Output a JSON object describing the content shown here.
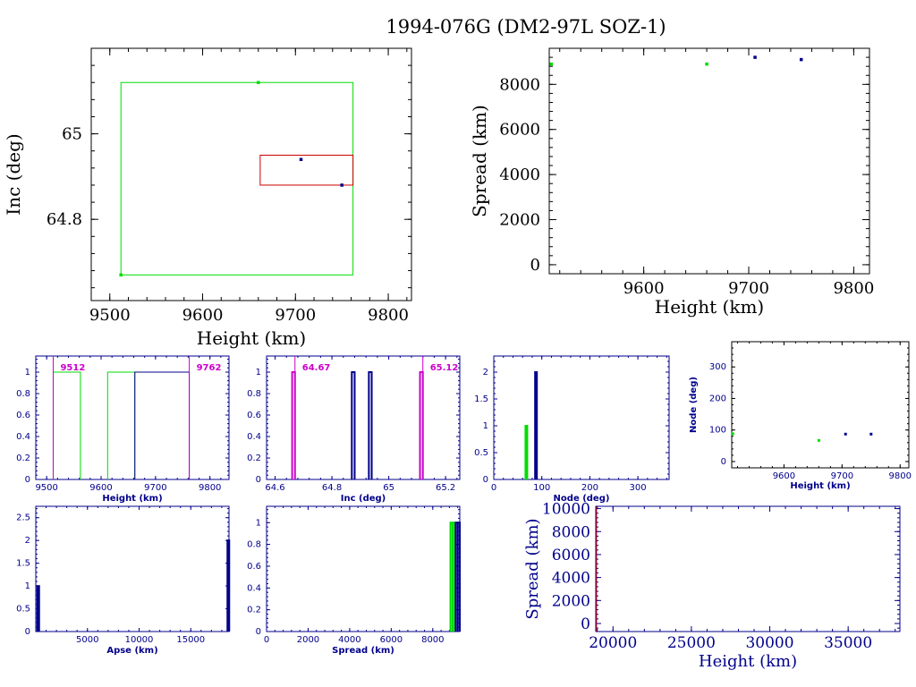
{
  "title": "1994-076G (DM2-97L SOZ-1)",
  "colors": {
    "green": "#00dd00",
    "blue": "#00008b",
    "red": "#cc0000",
    "magenta": "#cc00cc",
    "black": "#000000"
  },
  "chart_data": [
    {
      "id": "inc_height",
      "type": "scatter",
      "xlabel": "Height (km)",
      "ylabel": "Inc (deg)",
      "xlim": [
        9480,
        9825
      ],
      "ylim": [
        64.61,
        65.2
      ],
      "xticks": [
        9500,
        9600,
        9700,
        9800
      ],
      "yticks": [
        64.8,
        65
      ],
      "points": [
        {
          "x": 9512,
          "y": 64.67,
          "color": "green"
        },
        {
          "x": 9660,
          "y": 65.12,
          "color": "green"
        },
        {
          "x": 9706,
          "y": 64.94,
          "color": "blue"
        },
        {
          "x": 9750,
          "y": 64.88,
          "color": "blue"
        }
      ],
      "boxes": [
        {
          "x0": 9512,
          "x1": 9762,
          "y0": 64.67,
          "y1": 65.12,
          "color": "green"
        },
        {
          "x0": 9662,
          "x1": 9762,
          "y0": 64.88,
          "y1": 64.95,
          "color": "red"
        }
      ]
    },
    {
      "id": "spread_height",
      "type": "scatter",
      "xlabel": "Height (km)",
      "ylabel": "Spread (km)",
      "xlim": [
        9510,
        9815
      ],
      "ylim": [
        -400,
        9600
      ],
      "xticks": [
        9600,
        9700,
        9800
      ],
      "yticks": [
        0,
        2000,
        4000,
        6000,
        8000
      ],
      "points": [
        {
          "x": 9512,
          "y": 8900,
          "color": "green"
        },
        {
          "x": 9660,
          "y": 8900,
          "color": "green"
        },
        {
          "x": 9706,
          "y": 9200,
          "color": "blue"
        },
        {
          "x": 9750,
          "y": 9100,
          "color": "blue"
        }
      ]
    },
    {
      "id": "hist_height",
      "type": "bar",
      "xlabel": "Height (km)",
      "xlim": [
        9480,
        9835
      ],
      "ylim": [
        0,
        1.15
      ],
      "xticks": [
        9500,
        9600,
        9700,
        9800
      ],
      "yticks": [
        0,
        0.2,
        0.4,
        0.6,
        0.8,
        1
      ],
      "ytick_labels": [
        "0",
        "0.2",
        "0.4",
        "0.6",
        "0.8",
        "1"
      ],
      "bars": [
        {
          "x0": 9512,
          "x1": 9562,
          "y": 1,
          "color": "green"
        },
        {
          "x0": 9612,
          "x1": 9662,
          "y": 1,
          "color": "green"
        },
        {
          "x0": 9662,
          "x1": 9762,
          "y": 1,
          "color": "blue"
        }
      ],
      "markers": [
        {
          "x": 9512,
          "label": "9512",
          "side": "right"
        },
        {
          "x": 9762,
          "label": "9762",
          "side": "right"
        }
      ]
    },
    {
      "id": "hist_inc",
      "type": "bar",
      "xlabel": "Inc (deg)",
      "xlim": [
        64.57,
        65.25
      ],
      "ylim": [
        0,
        1.15
      ],
      "xticks": [
        64.6,
        64.8,
        65,
        65.2
      ],
      "xtick_labels": [
        "64.6",
        "64.8",
        "65",
        "65.2"
      ],
      "yticks": [
        0,
        0.2,
        0.4,
        0.6,
        0.8,
        1
      ],
      "ytick_labels": [
        "0",
        "0.2",
        "0.4",
        "0.6",
        "0.8",
        "1"
      ],
      "bars": [
        {
          "x0": 64.66,
          "x1": 64.67,
          "y": 1,
          "color": "magenta"
        },
        {
          "x0": 64.87,
          "x1": 64.88,
          "y": 1,
          "color": "blue"
        },
        {
          "x0": 64.93,
          "x1": 64.94,
          "y": 1,
          "color": "blue"
        },
        {
          "x0": 65.11,
          "x1": 65.12,
          "y": 1,
          "color": "magenta"
        }
      ],
      "markers": [
        {
          "x": 64.67,
          "label": "64.67",
          "side": "right"
        },
        {
          "x": 65.12,
          "label": "65.12",
          "side": "right"
        }
      ]
    },
    {
      "id": "hist_node",
      "type": "bar",
      "xlabel": "Node (deg)",
      "xlim": [
        0,
        365
      ],
      "ylim": [
        0,
        2.3
      ],
      "xticks": [
        0,
        100,
        200,
        300
      ],
      "yticks": [
        0,
        0.5,
        1,
        1.5,
        2
      ],
      "ytick_labels": [
        "0",
        "0.5",
        "1",
        "1.5",
        "2"
      ],
      "bars": [
        {
          "x0": 66,
          "x1": 68,
          "y": 1,
          "color": "green"
        },
        {
          "x0": 86,
          "x1": 88,
          "y": 2,
          "color": "blue"
        }
      ]
    },
    {
      "id": "node_height",
      "type": "scatter",
      "xlabel": "Height (km)",
      "ylabel": "Node (deg)",
      "xlim": [
        9510,
        9815
      ],
      "ylim": [
        -20,
        380
      ],
      "xticks": [
        9600,
        9700,
        9800
      ],
      "yticks": [
        0,
        100,
        200,
        300
      ],
      "points": [
        {
          "x": 9512,
          "y": 88,
          "color": "green"
        },
        {
          "x": 9660,
          "y": 67,
          "color": "green"
        },
        {
          "x": 9706,
          "y": 87,
          "color": "blue"
        },
        {
          "x": 9750,
          "y": 87,
          "color": "blue"
        }
      ]
    },
    {
      "id": "hist_apse",
      "type": "bar",
      "xlabel": "Apse (km)",
      "xlim": [
        0,
        18700
      ],
      "ylim": [
        0,
        2.75
      ],
      "xticks": [
        5000,
        10000,
        15000
      ],
      "yticks": [
        0,
        0.5,
        1,
        1.5,
        2,
        2.5
      ],
      "ytick_labels": [
        "0",
        "0.5",
        "1",
        "1.5",
        "2",
        "2.5"
      ],
      "bars": [
        {
          "x0": 150,
          "x1": 250,
          "y": 1,
          "color": "blue"
        },
        {
          "x0": 18550,
          "x1": 18650,
          "y": 2,
          "color": "blue"
        }
      ]
    },
    {
      "id": "hist_spread",
      "type": "bar",
      "xlabel": "Spread (km)",
      "xlim": [
        0,
        9300
      ],
      "ylim": [
        0,
        1.15
      ],
      "xticks": [
        0,
        2000,
        4000,
        6000,
        8000
      ],
      "yticks": [
        0,
        0.2,
        0.4,
        0.6,
        0.8,
        1
      ],
      "ytick_labels": [
        "0",
        "0.2",
        "0.4",
        "0.6",
        "0.8",
        "1"
      ],
      "bars": [
        {
          "x0": 8850,
          "x1": 8950,
          "y": 1,
          "color": "green"
        },
        {
          "x0": 8950,
          "x1": 9050,
          "y": 1,
          "color": "green"
        },
        {
          "x0": 9100,
          "x1": 9200,
          "y": 1,
          "color": "blue"
        },
        {
          "x0": 9200,
          "x1": 9300,
          "y": 1,
          "color": "blue"
        }
      ]
    },
    {
      "id": "spread_height_wide",
      "type": "scatter",
      "xlabel": "Height (km)",
      "ylabel": "Spread (km)",
      "xlim": [
        18900,
        38300
      ],
      "ylim": [
        -700,
        10200
      ],
      "xticks": [
        20000,
        25000,
        30000,
        35000
      ],
      "yticks": [
        0,
        2000,
        4000,
        6000,
        8000,
        10000
      ],
      "points": [],
      "edge_marks": [
        {
          "x": 18950,
          "color": "red"
        }
      ]
    }
  ]
}
